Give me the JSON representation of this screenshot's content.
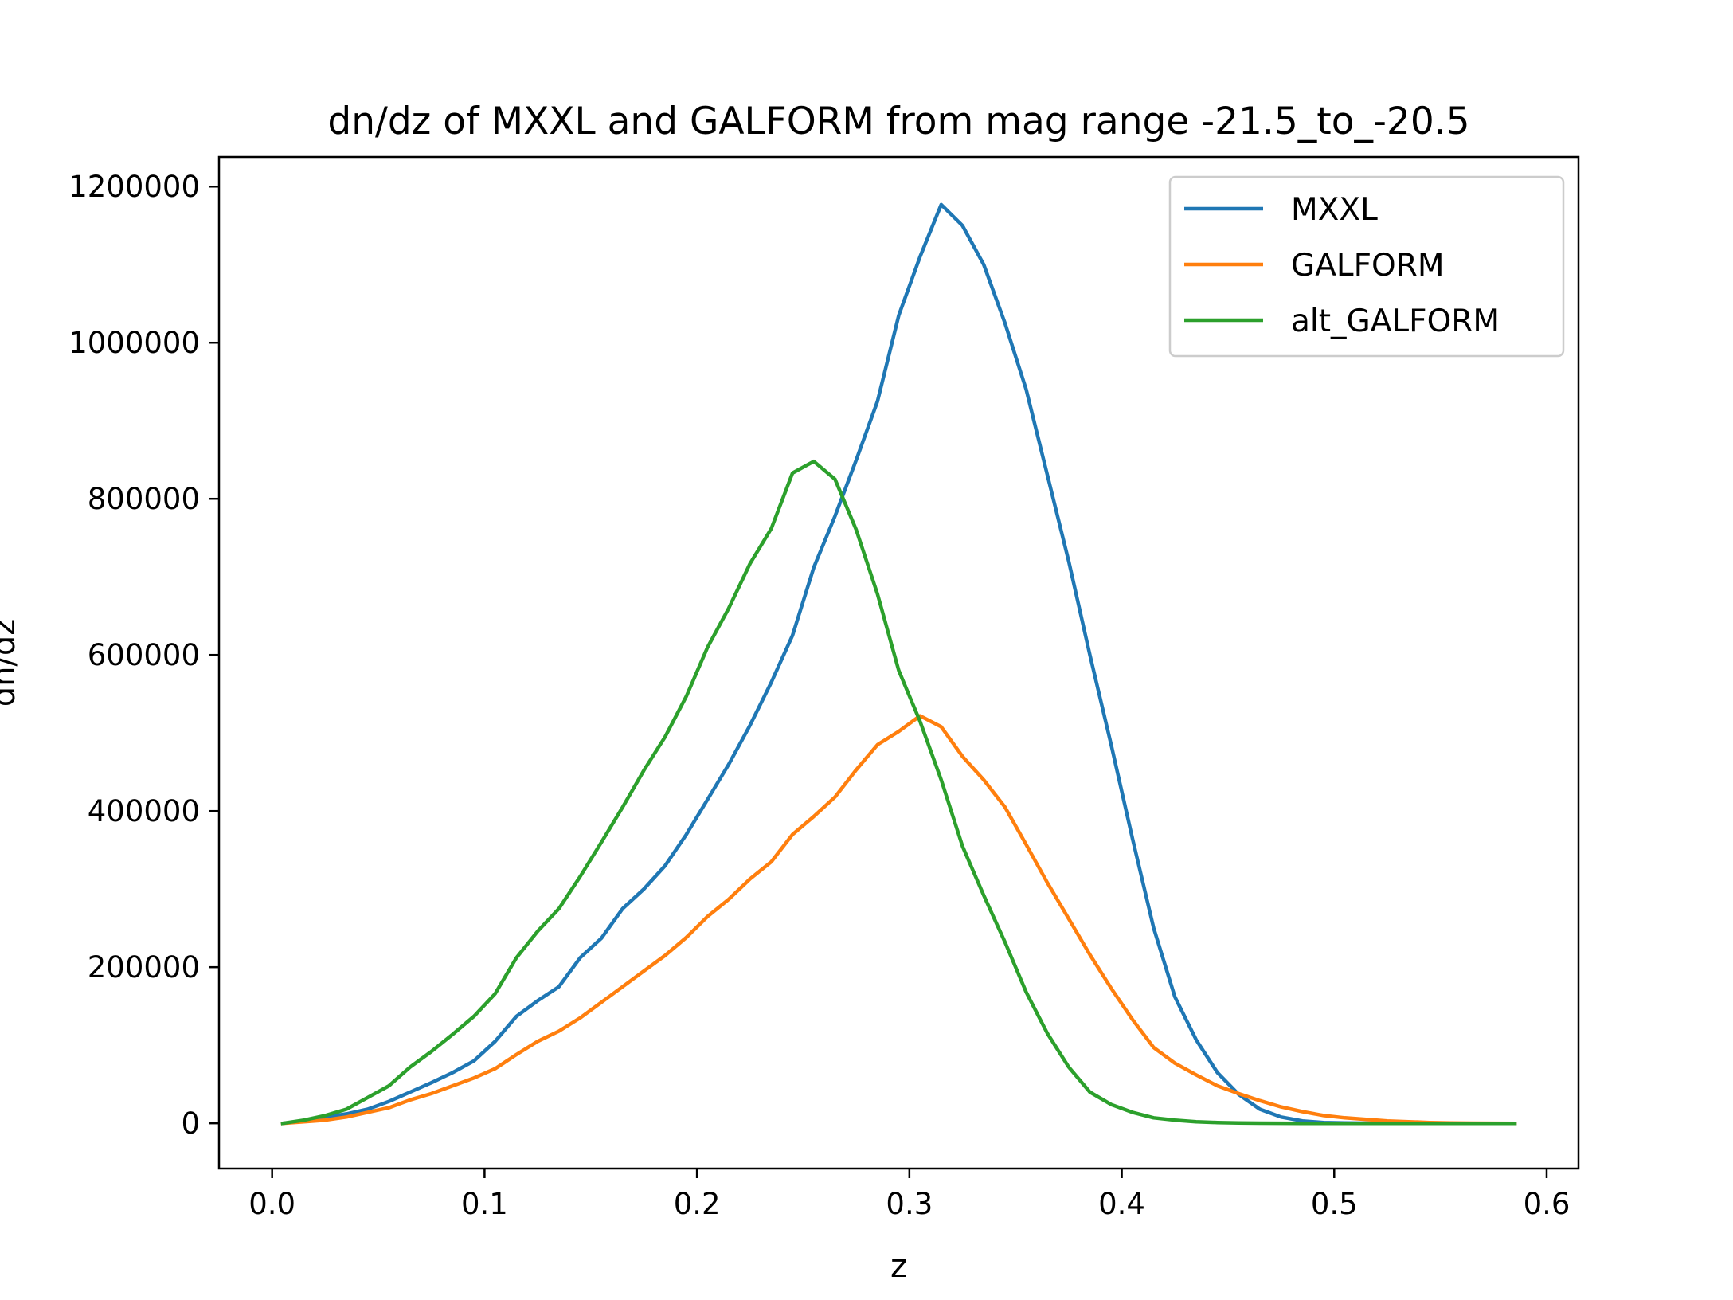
{
  "chart_data": {
    "type": "line",
    "title": "dn/dz of MXXL and GALFORM from mag range -21.5_to_-20.5",
    "xlabel": "z",
    "ylabel": "dn/dz",
    "xlim": [
      -0.025,
      0.615
    ],
    "ylim": [
      -58000,
      1238000
    ],
    "x_ticks": [
      0.0,
      0.1,
      0.2,
      0.3,
      0.4,
      0.5,
      0.6
    ],
    "x_tick_labels": [
      "0.0",
      "0.1",
      "0.2",
      "0.3",
      "0.4",
      "0.5",
      "0.6"
    ],
    "y_ticks": [
      0,
      200000,
      400000,
      600000,
      800000,
      1000000,
      1200000
    ],
    "y_tick_labels": [
      "0",
      "200000",
      "400000",
      "600000",
      "800000",
      "1000000",
      "1200000"
    ],
    "grid": false,
    "legend_position": "top-right",
    "x": [
      0.005,
      0.015,
      0.025,
      0.035,
      0.045,
      0.055,
      0.065,
      0.075,
      0.085,
      0.095,
      0.105,
      0.115,
      0.125,
      0.135,
      0.145,
      0.155,
      0.165,
      0.175,
      0.185,
      0.195,
      0.205,
      0.215,
      0.225,
      0.235,
      0.245,
      0.255,
      0.265,
      0.275,
      0.285,
      0.295,
      0.305,
      0.315,
      0.325,
      0.335,
      0.345,
      0.355,
      0.365,
      0.375,
      0.385,
      0.395,
      0.405,
      0.415,
      0.425,
      0.435,
      0.445,
      0.455,
      0.465,
      0.475,
      0.485,
      0.495,
      0.505,
      0.515,
      0.525,
      0.535,
      0.545,
      0.555,
      0.565,
      0.575,
      0.585
    ],
    "series": [
      {
        "name": "MXXL",
        "color": "#1f77b4",
        "values": [
          0,
          3000,
          8000,
          12000,
          18000,
          28000,
          40000,
          52000,
          65000,
          80000,
          105000,
          137000,
          157000,
          175000,
          212000,
          237000,
          275000,
          300000,
          330000,
          370000,
          415000,
          460000,
          510000,
          565000,
          625000,
          712000,
          778000,
          850000,
          925000,
          1035000,
          1110000,
          1177000,
          1150000,
          1100000,
          1025000,
          940000,
          830000,
          720000,
          600000,
          485000,
          365000,
          250000,
          162000,
          107000,
          65000,
          37000,
          18000,
          8000,
          3000,
          1000,
          500,
          200,
          100,
          0,
          0,
          0,
          0,
          0,
          0
        ]
      },
      {
        "name": "GALFORM",
        "color": "#ff7f0e",
        "values": [
          0,
          2000,
          4000,
          8000,
          14000,
          20000,
          30000,
          38000,
          48000,
          58000,
          70000,
          88000,
          105000,
          118000,
          135000,
          155000,
          175000,
          195000,
          215000,
          238000,
          265000,
          287000,
          313000,
          335000,
          370000,
          393000,
          418000,
          453000,
          485000,
          502000,
          522000,
          508000,
          470000,
          440000,
          405000,
          357000,
          308000,
          262000,
          216000,
          173000,
          133000,
          97000,
          77000,
          62000,
          48000,
          38000,
          29000,
          21000,
          15000,
          10000,
          7000,
          5000,
          3000,
          2000,
          1000,
          500,
          200,
          100,
          0
        ]
      },
      {
        "name": "alt_GALFORM",
        "color": "#2ca02c",
        "values": [
          0,
          4000,
          10000,
          18000,
          33000,
          48000,
          72000,
          92000,
          114000,
          137000,
          166000,
          212000,
          246000,
          275000,
          316000,
          360000,
          405000,
          452000,
          495000,
          547000,
          610000,
          660000,
          717000,
          762000,
          833000,
          848000,
          825000,
          760000,
          678000,
          580000,
          515000,
          440000,
          355000,
          292000,
          232000,
          168000,
          115000,
          72000,
          40000,
          24000,
          14000,
          7000,
          4000,
          2000,
          1000,
          500,
          200,
          100,
          0,
          0,
          0,
          0,
          0,
          0,
          0,
          0,
          0,
          0,
          0
        ]
      }
    ]
  }
}
